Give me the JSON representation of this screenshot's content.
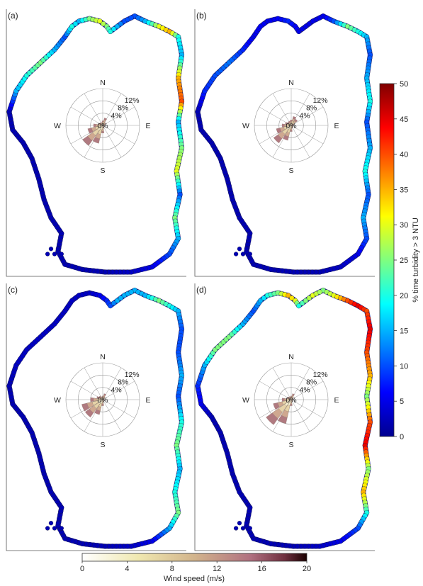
{
  "panels": [
    {
      "label": "(a)",
      "points": [
        [
          0.72,
          0.01,
          10
        ],
        [
          0.78,
          0.03,
          15
        ],
        [
          0.86,
          0.05,
          30
        ],
        [
          0.92,
          0.07,
          35
        ],
        [
          0.97,
          0.09,
          20
        ],
        [
          0.99,
          0.16,
          15
        ],
        [
          0.97,
          0.25,
          35
        ],
        [
          0.99,
          0.34,
          40
        ],
        [
          0.97,
          0.42,
          15
        ],
        [
          0.99,
          0.52,
          25
        ],
        [
          0.96,
          0.61,
          30
        ],
        [
          0.98,
          0.7,
          10
        ],
        [
          0.95,
          0.79,
          25
        ],
        [
          0.97,
          0.87,
          15
        ],
        [
          0.92,
          0.93,
          10
        ],
        [
          0.82,
          0.98,
          5
        ],
        [
          0.7,
          1.0,
          3
        ],
        [
          0.55,
          1.0,
          2
        ],
        [
          0.42,
          0.99,
          2
        ],
        [
          0.32,
          0.97,
          2
        ],
        [
          0.28,
          0.92,
          2
        ],
        [
          0.3,
          0.85,
          2
        ],
        [
          0.24,
          0.79,
          2
        ],
        [
          0.2,
          0.72,
          2
        ],
        [
          0.17,
          0.64,
          2
        ],
        [
          0.13,
          0.56,
          2
        ],
        [
          0.08,
          0.5,
          2
        ],
        [
          0.02,
          0.45,
          2
        ],
        [
          0.0,
          0.38,
          2
        ],
        [
          0.04,
          0.3,
          15
        ],
        [
          0.1,
          0.24,
          20
        ],
        [
          0.18,
          0.19,
          25
        ],
        [
          0.26,
          0.14,
          15
        ],
        [
          0.32,
          0.09,
          10
        ],
        [
          0.36,
          0.05,
          20
        ],
        [
          0.4,
          0.03,
          15
        ],
        [
          0.46,
          0.02,
          25
        ],
        [
          0.52,
          0.03,
          30
        ],
        [
          0.56,
          0.05,
          25
        ],
        [
          0.58,
          0.07,
          20
        ],
        [
          0.62,
          0.05,
          15
        ],
        [
          0.66,
          0.03,
          10
        ]
      ],
      "windrose": [
        {
          "dir": "N",
          "pct": 1.5
        },
        {
          "dir": "NNE",
          "pct": 2.5
        },
        {
          "dir": "NE",
          "pct": 1.2
        },
        {
          "dir": "ENE",
          "pct": 0.8
        },
        {
          "dir": "E",
          "pct": 0.6
        },
        {
          "dir": "ESE",
          "pct": 0.5
        },
        {
          "dir": "SE",
          "pct": 0.6
        },
        {
          "dir": "SSE",
          "pct": 1.0
        },
        {
          "dir": "S",
          "pct": 2.5
        },
        {
          "dir": "SSW",
          "pct": 6
        },
        {
          "dir": "SW",
          "pct": 8
        },
        {
          "dir": "WSW",
          "pct": 5
        },
        {
          "dir": "W",
          "pct": 3
        },
        {
          "dir": "WNW",
          "pct": 1.5
        },
        {
          "dir": "NW",
          "pct": 1.2
        },
        {
          "dir": "NNW",
          "pct": 1.0
        }
      ]
    },
    {
      "label": "(b)",
      "points": [
        [
          0.72,
          0.01,
          5
        ],
        [
          0.78,
          0.03,
          10
        ],
        [
          0.86,
          0.05,
          25
        ],
        [
          0.92,
          0.07,
          20
        ],
        [
          0.97,
          0.09,
          15
        ],
        [
          0.99,
          0.16,
          10
        ],
        [
          0.97,
          0.25,
          15
        ],
        [
          0.99,
          0.34,
          20
        ],
        [
          0.97,
          0.42,
          10
        ],
        [
          0.99,
          0.52,
          15
        ],
        [
          0.96,
          0.61,
          20
        ],
        [
          0.98,
          0.7,
          10
        ],
        [
          0.95,
          0.79,
          15
        ],
        [
          0.97,
          0.87,
          10
        ],
        [
          0.92,
          0.93,
          5
        ],
        [
          0.82,
          0.98,
          3
        ],
        [
          0.7,
          1.0,
          2
        ],
        [
          0.55,
          1.0,
          2
        ],
        [
          0.42,
          0.99,
          2
        ],
        [
          0.32,
          0.97,
          2
        ],
        [
          0.28,
          0.92,
          2
        ],
        [
          0.3,
          0.85,
          2
        ],
        [
          0.24,
          0.79,
          2
        ],
        [
          0.2,
          0.72,
          2
        ],
        [
          0.17,
          0.64,
          2
        ],
        [
          0.13,
          0.56,
          2
        ],
        [
          0.08,
          0.5,
          2
        ],
        [
          0.02,
          0.45,
          2
        ],
        [
          0.0,
          0.38,
          2
        ],
        [
          0.04,
          0.3,
          8
        ],
        [
          0.1,
          0.24,
          10
        ],
        [
          0.18,
          0.19,
          12
        ],
        [
          0.26,
          0.14,
          8
        ],
        [
          0.32,
          0.09,
          5
        ],
        [
          0.36,
          0.05,
          6
        ],
        [
          0.4,
          0.03,
          5
        ],
        [
          0.46,
          0.02,
          6
        ],
        [
          0.52,
          0.03,
          8
        ],
        [
          0.56,
          0.05,
          6
        ],
        [
          0.58,
          0.07,
          5
        ],
        [
          0.62,
          0.05,
          5
        ],
        [
          0.66,
          0.03,
          5
        ]
      ],
      "windrose": [
        {
          "dir": "N",
          "pct": 1.8
        },
        {
          "dir": "NNE",
          "pct": 3
        },
        {
          "dir": "NE",
          "pct": 2.5
        },
        {
          "dir": "ENE",
          "pct": 1.0
        },
        {
          "dir": "E",
          "pct": 0.8
        },
        {
          "dir": "ESE",
          "pct": 0.6
        },
        {
          "dir": "SE",
          "pct": 0.7
        },
        {
          "dir": "SSE",
          "pct": 1.0
        },
        {
          "dir": "S",
          "pct": 2.0
        },
        {
          "dir": "SSW",
          "pct": 5
        },
        {
          "dir": "SW",
          "pct": 7
        },
        {
          "dir": "WSW",
          "pct": 5
        },
        {
          "dir": "W",
          "pct": 3
        },
        {
          "dir": "WNW",
          "pct": 2
        },
        {
          "dir": "NW",
          "pct": 1.5
        },
        {
          "dir": "NNW",
          "pct": 1.5
        }
      ]
    },
    {
      "label": "(c)",
      "points": [
        [
          0.72,
          0.01,
          15
        ],
        [
          0.78,
          0.03,
          15
        ],
        [
          0.86,
          0.05,
          25
        ],
        [
          0.92,
          0.07,
          20
        ],
        [
          0.97,
          0.09,
          15
        ],
        [
          0.99,
          0.16,
          10
        ],
        [
          0.97,
          0.25,
          10
        ],
        [
          0.99,
          0.34,
          15
        ],
        [
          0.97,
          0.42,
          10
        ],
        [
          0.99,
          0.52,
          20
        ],
        [
          0.96,
          0.61,
          25
        ],
        [
          0.98,
          0.7,
          15
        ],
        [
          0.95,
          0.79,
          20
        ],
        [
          0.97,
          0.87,
          25
        ],
        [
          0.92,
          0.93,
          15
        ],
        [
          0.82,
          0.98,
          5
        ],
        [
          0.7,
          1.0,
          3
        ],
        [
          0.55,
          1.0,
          2
        ],
        [
          0.42,
          0.99,
          2
        ],
        [
          0.32,
          0.97,
          2
        ],
        [
          0.28,
          0.92,
          2
        ],
        [
          0.3,
          0.85,
          2
        ],
        [
          0.24,
          0.79,
          2
        ],
        [
          0.2,
          0.72,
          2
        ],
        [
          0.17,
          0.64,
          2
        ],
        [
          0.13,
          0.56,
          2
        ],
        [
          0.08,
          0.5,
          2
        ],
        [
          0.02,
          0.45,
          2
        ],
        [
          0.0,
          0.38,
          2
        ],
        [
          0.04,
          0.3,
          3
        ],
        [
          0.1,
          0.24,
          3
        ],
        [
          0.18,
          0.19,
          3
        ],
        [
          0.26,
          0.14,
          3
        ],
        [
          0.32,
          0.09,
          3
        ],
        [
          0.36,
          0.05,
          3
        ],
        [
          0.4,
          0.03,
          3
        ],
        [
          0.46,
          0.02,
          3
        ],
        [
          0.52,
          0.03,
          5
        ],
        [
          0.56,
          0.05,
          8
        ],
        [
          0.58,
          0.07,
          10
        ],
        [
          0.62,
          0.05,
          15
        ],
        [
          0.66,
          0.03,
          15
        ]
      ],
      "windrose": [
        {
          "dir": "N",
          "pct": 1.2
        },
        {
          "dir": "NNE",
          "pct": 2
        },
        {
          "dir": "NE",
          "pct": 1.0
        },
        {
          "dir": "ENE",
          "pct": 0.6
        },
        {
          "dir": "E",
          "pct": 0.5
        },
        {
          "dir": "ESE",
          "pct": 0.4
        },
        {
          "dir": "SE",
          "pct": 0.5
        },
        {
          "dir": "SSE",
          "pct": 0.8
        },
        {
          "dir": "S",
          "pct": 2.0
        },
        {
          "dir": "SSW",
          "pct": 5
        },
        {
          "dir": "SW",
          "pct": 7
        },
        {
          "dir": "WSW",
          "pct": 7
        },
        {
          "dir": "W",
          "pct": 4
        },
        {
          "dir": "WNW",
          "pct": 2
        },
        {
          "dir": "NW",
          "pct": 1.5
        },
        {
          "dir": "NNW",
          "pct": 1.0
        }
      ]
    },
    {
      "label": "(d)",
      "points": [
        [
          0.72,
          0.01,
          25
        ],
        [
          0.78,
          0.03,
          30
        ],
        [
          0.86,
          0.05,
          40
        ],
        [
          0.92,
          0.07,
          45
        ],
        [
          0.97,
          0.09,
          40
        ],
        [
          0.99,
          0.16,
          45
        ],
        [
          0.97,
          0.25,
          40
        ],
        [
          0.99,
          0.34,
          35
        ],
        [
          0.97,
          0.42,
          25
        ],
        [
          0.99,
          0.52,
          40
        ],
        [
          0.96,
          0.61,
          45
        ],
        [
          0.98,
          0.7,
          25
        ],
        [
          0.95,
          0.79,
          35
        ],
        [
          0.97,
          0.87,
          20
        ],
        [
          0.92,
          0.93,
          10
        ],
        [
          0.82,
          0.98,
          5
        ],
        [
          0.7,
          1.0,
          3
        ],
        [
          0.55,
          1.0,
          2
        ],
        [
          0.42,
          0.99,
          2
        ],
        [
          0.32,
          0.97,
          2
        ],
        [
          0.28,
          0.92,
          2
        ],
        [
          0.3,
          0.85,
          2
        ],
        [
          0.24,
          0.79,
          2
        ],
        [
          0.2,
          0.72,
          2
        ],
        [
          0.17,
          0.64,
          2
        ],
        [
          0.13,
          0.56,
          2
        ],
        [
          0.08,
          0.5,
          2
        ],
        [
          0.02,
          0.45,
          5
        ],
        [
          0.0,
          0.38,
          8
        ],
        [
          0.04,
          0.3,
          15
        ],
        [
          0.1,
          0.24,
          25
        ],
        [
          0.18,
          0.19,
          25
        ],
        [
          0.26,
          0.14,
          15
        ],
        [
          0.32,
          0.09,
          10
        ],
        [
          0.36,
          0.05,
          15
        ],
        [
          0.4,
          0.03,
          20
        ],
        [
          0.46,
          0.02,
          25
        ],
        [
          0.52,
          0.03,
          35
        ],
        [
          0.56,
          0.05,
          30
        ],
        [
          0.58,
          0.07,
          20
        ],
        [
          0.62,
          0.05,
          25
        ],
        [
          0.66,
          0.03,
          30
        ]
      ],
      "windrose": [
        {
          "dir": "N",
          "pct": 1.2
        },
        {
          "dir": "NNE",
          "pct": 2
        },
        {
          "dir": "NE",
          "pct": 1.0
        },
        {
          "dir": "ENE",
          "pct": 0.7
        },
        {
          "dir": "E",
          "pct": 0.5
        },
        {
          "dir": "ESE",
          "pct": 0.4
        },
        {
          "dir": "SE",
          "pct": 0.5
        },
        {
          "dir": "SSE",
          "pct": 0.8
        },
        {
          "dir": "S",
          "pct": 2.0
        },
        {
          "dir": "SSW",
          "pct": 8
        },
        {
          "dir": "SW",
          "pct": 10
        },
        {
          "dir": "WSW",
          "pct": 6
        },
        {
          "dir": "W",
          "pct": 3
        },
        {
          "dir": "WNW",
          "pct": 1.5
        },
        {
          "dir": "NW",
          "pct": 1.2
        },
        {
          "dir": "NNW",
          "pct": 1.0
        }
      ]
    }
  ],
  "compass": [
    "N",
    "E",
    "S",
    "W"
  ],
  "ring_labels": [
    "4%",
    "8%",
    "12%"
  ],
  "center_label": "0%",
  "turbidity_colorbar": {
    "label": "% time turbidity > 3 NTU",
    "ticks": [
      "0",
      "5",
      "10",
      "15",
      "20",
      "25",
      "30",
      "35",
      "40",
      "45",
      "50"
    ],
    "min": 0,
    "max": 50
  },
  "wind_colorbar": {
    "label": "Wind speed (m/s)",
    "ticks": [
      "0",
      "4",
      "8",
      "12",
      "16",
      "20"
    ],
    "min": 0,
    "max": 20
  },
  "chart_data": {
    "type": "scatter",
    "title": "",
    "panels": [
      "(a)",
      "(b)",
      "(c)",
      "(d)"
    ],
    "colorbar": "% time turbidity > 3 NTU",
    "colorbar_range": [
      0,
      50
    ],
    "inset": "wind rose",
    "inset_radial_ticks": [
      "4%",
      "8%",
      "12%"
    ],
    "inset_colorbar": "Wind speed (m/s)",
    "inset_colorbar_range": [
      0,
      20
    ]
  }
}
